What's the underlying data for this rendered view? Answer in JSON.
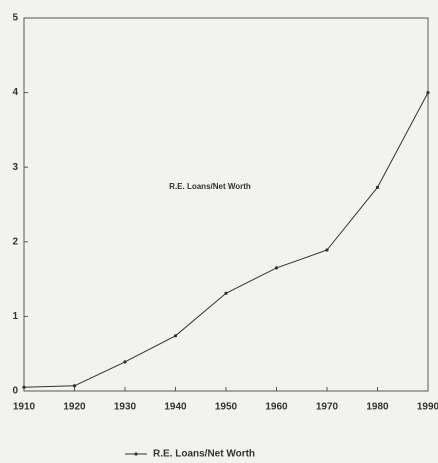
{
  "chart_data": {
    "type": "line",
    "x": [
      1910,
      1920,
      1930,
      1940,
      1950,
      1960,
      1970,
      1980,
      1990
    ],
    "series": [
      {
        "name": "R.E. Loans/Net Worth",
        "color": "#333333",
        "values": [
          0.05,
          0.07,
          0.39,
          0.74,
          1.31,
          1.65,
          1.89,
          2.73,
          4.0
        ]
      }
    ],
    "annotations": [
      "R.E. Loans/Net Worth"
    ],
    "xlim": [
      1910,
      1990
    ],
    "xticks": [
      1910,
      1920,
      1930,
      1940,
      1950,
      1960,
      1970,
      1980,
      1990
    ],
    "ylim": [
      0,
      5
    ],
    "yticks": [
      0,
      1,
      2,
      3,
      4,
      5
    ],
    "grid": false,
    "legend": "bottom"
  }
}
